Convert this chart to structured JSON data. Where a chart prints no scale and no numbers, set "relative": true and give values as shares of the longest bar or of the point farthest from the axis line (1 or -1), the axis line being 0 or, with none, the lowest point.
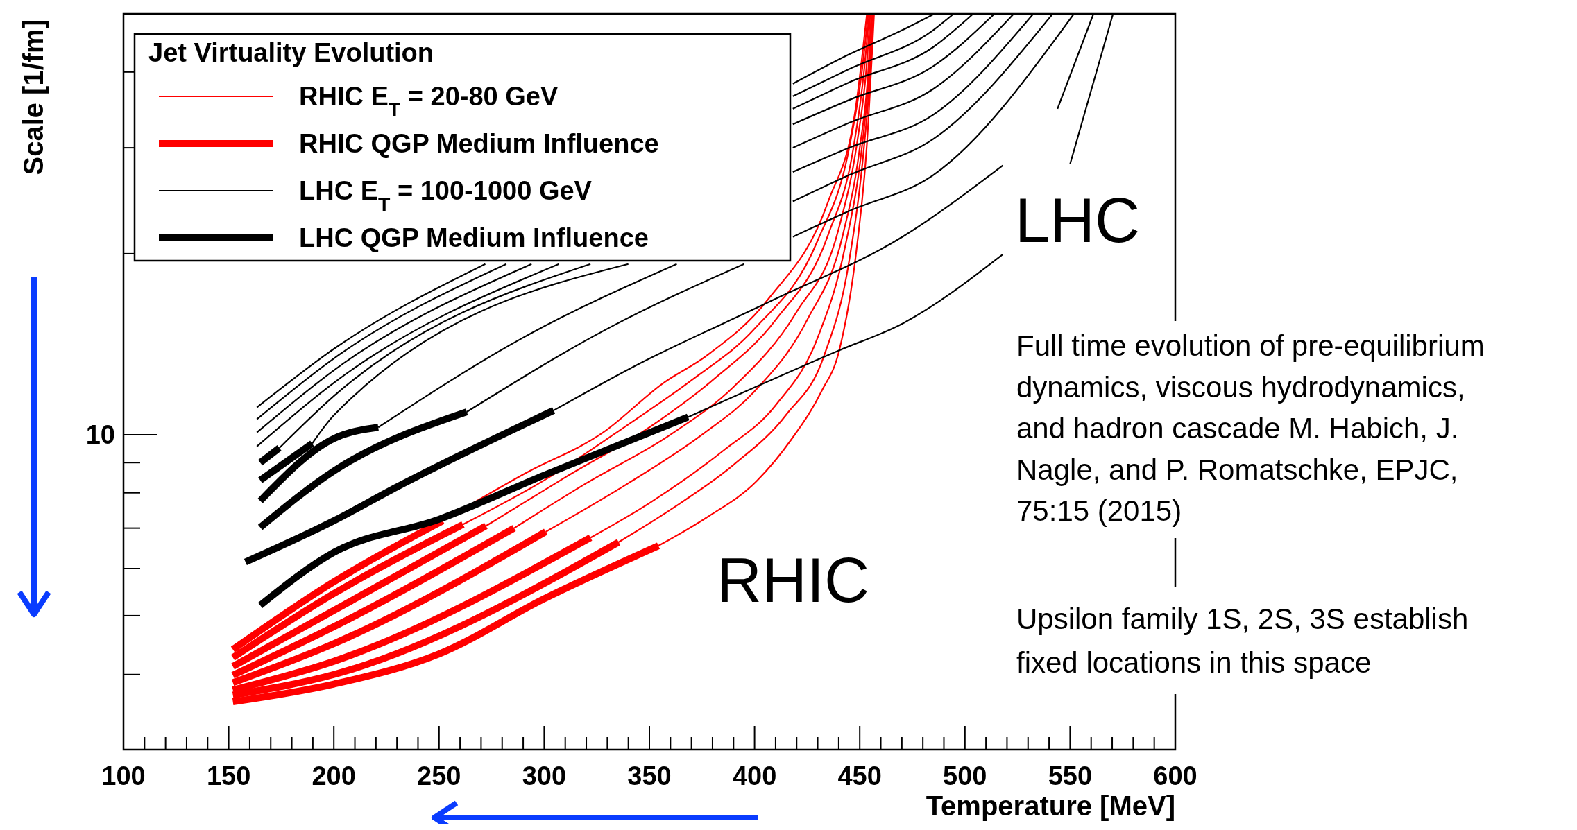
{
  "chart_data": {
    "type": "line",
    "xlabel": "Temperature [MeV]",
    "ylabel": "Scale [1/fm]",
    "legend_title": "Jet Virtuality Evolution",
    "legend": "top left",
    "relative": true,
    "xlim": [
      100,
      600
    ],
    "xticks": [
      100,
      150,
      200,
      250,
      300,
      350,
      400,
      450,
      500,
      550,
      600
    ],
    "annotations": [
      "LHC",
      "RHIC",
      "Full time evolution of pre-equilibrium\ndynamics, viscous hydrodynamics,\nand hadron cascade M. Habich, J.\nNagle, and P. Romatschke, EPJC,\n75:15 (2015)",
      "Upsilon family 1S, 2S, 3S establish\nfixed locations in this space",
      "10"
    ],
    "series": [
      {
        "name": "RHIC E$_{T}$ = 20-80 GeV",
        "color": "#ff0000",
        "x": [
          251.8,
          290,
          328,
          357,
          377,
          407,
          435,
          448,
          453.4
        ],
        "values": [
          0.311,
          0.374,
          0.431,
          0.499,
          0.535,
          0.614,
          0.745,
          0.871,
          1
        ]
      },
      {
        "color": "#ff0000",
        "x": [
          261.4,
          300,
          340,
          370,
          400,
          430,
          445,
          451,
          454
        ],
        "values": [
          0.306,
          0.366,
          0.442,
          0.502,
          0.572,
          0.692,
          0.818,
          0.921,
          1
        ]
      },
      {
        "color": "#ff0000",
        "x": [
          272.3,
          310,
          350,
          380,
          410,
          435,
          447,
          452,
          454.5
        ],
        "values": [
          0.304,
          0.37,
          0.438,
          0.502,
          0.584,
          0.7,
          0.818,
          0.921,
          1
        ]
      },
      {
        "color": "#ff0000",
        "x": [
          285.7,
          320,
          360,
          390,
          420,
          440,
          449,
          453,
          455
        ],
        "values": [
          0.301,
          0.362,
          0.428,
          0.493,
          0.595,
          0.708,
          0.83,
          0.921,
          1
        ]
      },
      {
        "color": "#ff0000",
        "x": [
          300.7,
          340,
          375,
          400,
          425,
          442,
          450,
          454,
          455.5
        ],
        "values": [
          0.296,
          0.362,
          0.428,
          0.487,
          0.584,
          0.7,
          0.818,
          0.921,
          1
        ]
      },
      {
        "color": "#ff0000",
        "x": [
          322,
          350,
          385,
          410,
          430,
          443,
          451,
          454.5,
          456
        ],
        "values": [
          0.288,
          0.335,
          0.406,
          0.468,
          0.56,
          0.683,
          0.818,
          0.921,
          1
        ]
      },
      {
        "color": "#ff0000",
        "x": [
          335.4,
          360,
          390,
          415,
          433,
          445,
          452,
          455,
          456.5
        ],
        "values": [
          0.282,
          0.326,
          0.387,
          0.455,
          0.535,
          0.665,
          0.818,
          0.921,
          1
        ]
      },
      {
        "color": "#ff0000",
        "x": [
          354.3,
          377,
          401,
          417.6,
          432,
          440.2,
          448.4,
          453.4,
          456.8
        ],
        "values": [
          0.277,
          0.315,
          0.365,
          0.422,
          0.488,
          0.542,
          0.678,
          0.823,
          1
        ]
      },
      {
        "name": "RHIC QGP Medium Influence",
        "color": "#ff0000",
        "x": [
          152,
          200,
          251.8
        ],
        "values": [
          0.136,
          0.228,
          0.311
        ]
      },
      {
        "color": "#ff0000",
        "x": [
          152,
          200,
          261.4
        ],
        "values": [
          0.125,
          0.212,
          0.306
        ]
      },
      {
        "color": "#ff0000",
        "x": [
          152,
          200,
          272.3
        ],
        "values": [
          0.113,
          0.189,
          0.304
        ]
      },
      {
        "color": "#ff0000",
        "x": [
          152,
          200,
          285.7
        ],
        "values": [
          0.101,
          0.167,
          0.301
        ]
      },
      {
        "color": "#ff0000",
        "x": [
          152,
          200,
          300.7
        ],
        "values": [
          0.091,
          0.144,
          0.296
        ]
      },
      {
        "color": "#ff0000",
        "x": [
          152,
          200,
          322
        ],
        "values": [
          0.081,
          0.12,
          0.288
        ]
      },
      {
        "color": "#ff0000",
        "x": [
          152,
          200,
          335.4
        ],
        "values": [
          0.074,
          0.102,
          0.282
        ]
      },
      {
        "color": "#ff0000",
        "x": [
          152,
          200,
          250,
          300,
          354.3
        ],
        "values": [
          0.065,
          0.089,
          0.13,
          0.205,
          0.277
        ]
      },
      {
        "name": "LHC E$_{T}$ = 100-1000 GeV",
        "color": "#000000",
        "x": [
          163.4,
          200.2,
          272,
          346,
          418.2,
          445,
          470.3,
          485.4
        ],
        "values": [
          0.465,
          0.545,
          0.66,
          null,
          0.905,
          0.945,
          0.978,
          1
        ]
      },
      {
        "color": "#000000",
        "x": [
          163.4,
          200.2,
          282,
          350,
          418.2,
          445,
          485,
          494.6
        ],
        "values": [
          0.449,
          0.532,
          0.66,
          null,
          0.888,
          0.925,
          0.978,
          1
        ]
      },
      {
        "color": "#000000",
        "x": [
          163.4,
          200.2,
          294,
          357,
          418.2,
          445,
          485,
          503.9
        ],
        "values": [
          0.431,
          0.516,
          0.66,
          null,
          0.871,
          0.907,
          0.955,
          1
        ]
      },
      {
        "color": "#000000",
        "x": [
          163.4,
          200.2,
          307,
          364,
          418.2,
          445,
          485,
          514
        ],
        "values": [
          0.412,
          0.499,
          0.66,
          null,
          0.85,
          0.883,
          0.929,
          1
        ]
      },
      {
        "color": "#000000",
        "x": [
          174.1,
          200.2,
          322,
          371,
          418.2,
          445,
          485,
          523.2
        ],
        "values": [
          0.41,
          0.481,
          0.66,
          null,
          0.818,
          0.852,
          0.898,
          1
        ]
      },
      {
        "color": "#000000",
        "x": [
          189.7,
          200.2,
          340,
          380,
          418.2,
          445,
          485,
          532.5
        ],
        "values": [
          0.416,
          0.455,
          0.66,
          null,
          0.785,
          0.818,
          0.863,
          1
        ]
      },
      {
        "color": "#000000",
        "x": [
          221.1,
          290,
          363,
          392,
          418.2,
          445,
          485,
          541.7
        ],
        "values": [
          0.438,
          0.56,
          0.66,
          null,
          0.745,
          0.781,
          0.83,
          1
        ]
      },
      {
        "color": "#000000",
        "x": [
          263.2,
          330,
          395,
          408,
          418.2,
          445,
          485,
          551.8
        ],
        "values": [
          0.459,
          0.572,
          0.66,
          null,
          0.697,
          0.732,
          0.781,
          1
        ]
      },
      {
        "color": "#000000",
        "x": [
          304.5,
          340.8,
          408,
          470.3,
          518,
          530,
          544,
          561.1
        ],
        "values": [
          0.461,
          0.518,
          0.61,
          0.697,
          0.794,
          null,
          0.871,
          1
        ]
      },
      {
        "color": "#000000",
        "x": [
          368.4,
          439.7,
          470.3,
          518,
          534,
          550,
          570.4
        ],
        "values": [
          0.452,
          0.542,
          0.579,
          0.673,
          null,
          0.796,
          1
        ]
      },
      {
        "name": "LHC QGP Medium Influence",
        "color": "#000000",
        "x": [
          165,
          174.1
        ],
        "values": [
          0.39,
          0.41
        ]
      },
      {
        "color": "#000000",
        "x": [
          165,
          189.7
        ],
        "values": [
          0.366,
          0.416
        ]
      },
      {
        "color": "#000000",
        "x": [
          165,
          200.2,
          221.1
        ],
        "values": [
          0.338,
          0.423,
          0.438
        ]
      },
      {
        "color": "#000000",
        "x": [
          165,
          200.2,
          263.2
        ],
        "values": [
          0.302,
          0.379,
          0.459
        ]
      },
      {
        "color": "#000000",
        "x": [
          158,
          200,
          230,
          304.5
        ],
        "values": [
          0.255,
          0.311,
          0.357,
          0.461
        ]
      },
      {
        "color": "#000000",
        "x": [
          165,
          200,
          250,
          300,
          368.4
        ],
        "values": [
          0.196,
          0.268,
          0.313,
          0.373,
          0.452
        ]
      }
    ]
  }
}
